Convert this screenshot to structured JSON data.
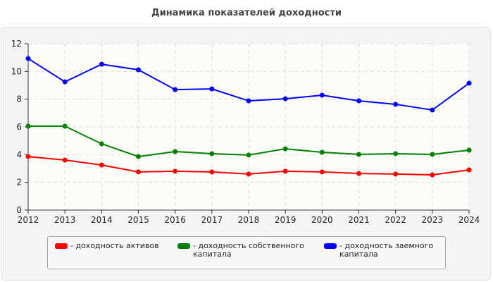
{
  "chart_data": {
    "type": "line",
    "title": "Динамика показателей доходности",
    "categories": [
      "2012",
      "2013",
      "2014",
      "2015",
      "2016",
      "2017",
      "2018",
      "2019",
      "2020",
      "2021",
      "2022",
      "2023",
      "2024"
    ],
    "ylim": [
      0,
      12
    ],
    "yticks": [
      "0",
      "2",
      "4",
      "6",
      "8",
      "10",
      "12"
    ],
    "grid": true,
    "legend_placement": "bottom",
    "series": [
      {
        "name": "- доходность активов",
        "color": "#ff0000",
        "values": [
          3.86,
          3.61,
          3.25,
          2.75,
          2.8,
          2.75,
          2.6,
          2.8,
          2.75,
          2.64,
          2.6,
          2.54,
          2.9
        ]
      },
      {
        "name": "- доходность собственного капитала",
        "color": "#008000",
        "values": [
          6.05,
          6.05,
          4.78,
          3.86,
          4.22,
          4.07,
          3.97,
          4.42,
          4.17,
          4.02,
          4.07,
          4.02,
          4.32
        ]
      },
      {
        "name": "- доходность заемного капитала",
        "color": "#0000ff",
        "values": [
          10.93,
          9.25,
          10.52,
          10.12,
          8.69,
          8.74,
          7.88,
          8.03,
          8.29,
          7.88,
          7.63,
          7.22,
          9.15
        ]
      }
    ]
  }
}
